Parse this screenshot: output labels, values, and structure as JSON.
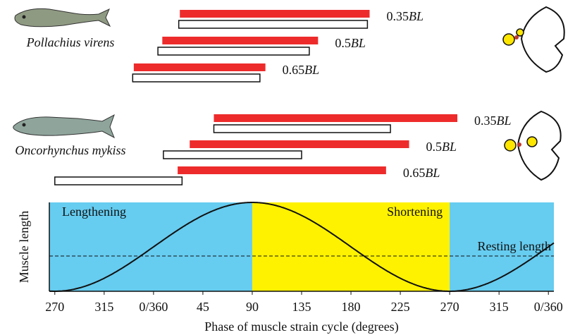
{
  "chart_data": {
    "type": "range-bar",
    "xlabel": "Phase of muscle strain cycle (degrees)",
    "ylabel": "Muscle length",
    "xlim": [
      265,
      725
    ],
    "xticks": [
      {
        "value": 270,
        "label": "270"
      },
      {
        "value": 315,
        "label": "315"
      },
      {
        "value": 360,
        "label": "0/360"
      },
      {
        "value": 405,
        "label": "45"
      },
      {
        "value": 450,
        "label": "90"
      },
      {
        "value": 495,
        "label": "135"
      },
      {
        "value": 540,
        "label": "180"
      },
      {
        "value": 585,
        "label": "225"
      },
      {
        "value": 630,
        "label": "270"
      },
      {
        "value": 675,
        "label": "315"
      },
      {
        "value": 720,
        "label": "0/360"
      }
    ],
    "regions": [
      {
        "label": "Lengthening",
        "from": 265,
        "to": 450,
        "color": "#66ccf0"
      },
      {
        "label": "Shortening",
        "from": 450,
        "to": 630,
        "color": "#fff200"
      },
      {
        "from": 630,
        "to": 725,
        "color": "#66ccf0"
      }
    ],
    "resting_label": "Resting length",
    "red_color": "#ee2b2b",
    "groups": [
      {
        "species": "Pollachius virens",
        "rows": [
          {
            "position": "0.35",
            "unit": "BL",
            "red": [
              384,
              557
            ],
            "white": [
              383,
              555
            ]
          },
          {
            "position": "0.5",
            "unit": "BL",
            "red": [
              368,
              510
            ],
            "white": [
              364,
              502
            ]
          },
          {
            "position": "0.65",
            "unit": "BL",
            "red": [
              342,
              462
            ],
            "white": [
              341,
              457
            ]
          }
        ]
      },
      {
        "species": "Oncorhynchus mykiss",
        "rows": [
          {
            "position": "0.35",
            "unit": "BL",
            "red": [
              415,
              637
            ],
            "white": [
              415,
              576
            ]
          },
          {
            "position": "0.5",
            "unit": "BL",
            "red": [
              393,
              593
            ],
            "white": [
              369,
              495
            ]
          },
          {
            "position": "0.65",
            "unit": "BL",
            "red": [
              382,
              572
            ],
            "white": [
              270,
              386
            ]
          }
        ]
      }
    ]
  }
}
